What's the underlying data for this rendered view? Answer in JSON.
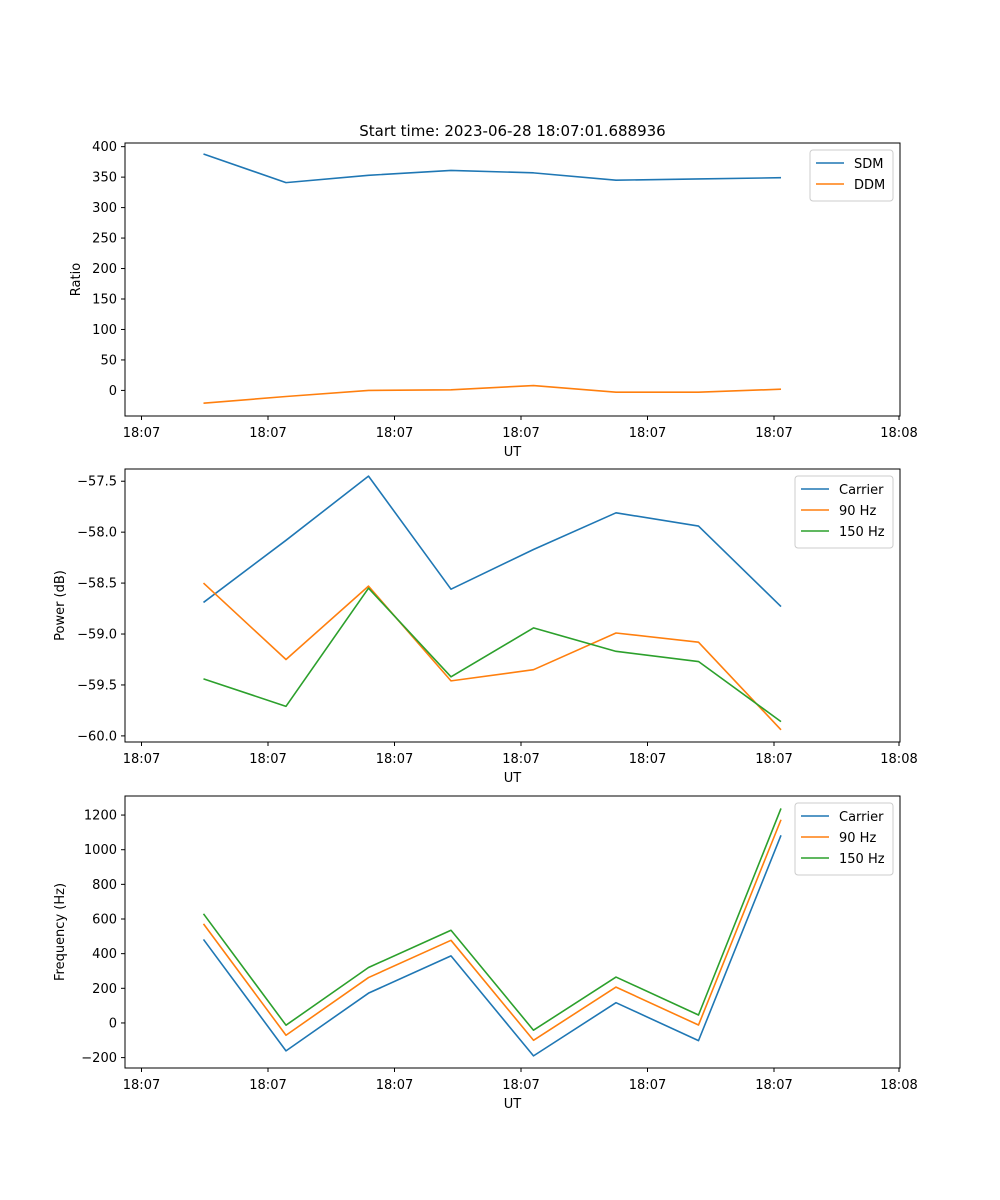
{
  "figure_title": "Start time: 2023-06-28 18:07:01.688936",
  "chart_data": [
    {
      "type": "line",
      "xlabel": "UT",
      "ylabel": "Ratio",
      "x_tick_labels": [
        "18:07",
        "18:07",
        "18:07",
        "18:07",
        "18:07",
        "18:07",
        "18:08"
      ],
      "yticks": [
        0,
        50,
        100,
        150,
        200,
        250,
        300,
        350,
        400
      ],
      "ylim": [
        -42,
        406
      ],
      "grid": false,
      "legend_position": "upper right",
      "series": [
        {
          "name": "SDM",
          "color": "#1f77b4",
          "values": [
            388,
            341,
            353,
            361,
            357,
            345,
            347,
            349
          ]
        },
        {
          "name": "DDM",
          "color": "#ff7f0e",
          "values": [
            -21,
            -10,
            0,
            1,
            8,
            -3,
            -3,
            2
          ]
        }
      ]
    },
    {
      "type": "line",
      "xlabel": "UT",
      "ylabel": "Power (dB)",
      "x_tick_labels": [
        "18:07",
        "18:07",
        "18:07",
        "18:07",
        "18:07",
        "18:07",
        "18:08"
      ],
      "yticks": [
        -60.0,
        -59.5,
        -59.0,
        -58.5,
        -58.0,
        -57.5
      ],
      "ytick_labels": [
        "−60.0",
        "−59.5",
        "−59.0",
        "−58.5",
        "−58.0",
        "−57.5"
      ],
      "ylim": [
        -60.06,
        -57.38
      ],
      "grid": false,
      "legend_position": "upper right",
      "series": [
        {
          "name": "Carrier",
          "color": "#1f77b4",
          "values": [
            -58.69,
            -58.08,
            -57.45,
            -58.56,
            -58.17,
            -57.81,
            -57.94,
            -58.73
          ]
        },
        {
          "name": "90 Hz",
          "color": "#ff7f0e",
          "values": [
            -58.5,
            -59.25,
            -58.53,
            -59.46,
            -59.35,
            -58.99,
            -59.08,
            -59.94
          ]
        },
        {
          "name": "150 Hz",
          "color": "#2ca02c",
          "values": [
            -59.44,
            -59.71,
            -58.55,
            -59.42,
            -58.94,
            -59.17,
            -59.27,
            -59.86
          ]
        }
      ]
    },
    {
      "type": "line",
      "xlabel": "UT",
      "ylabel": "Frequency (Hz)",
      "x_tick_labels": [
        "18:07",
        "18:07",
        "18:07",
        "18:07",
        "18:07",
        "18:07",
        "18:08"
      ],
      "yticks": [
        -200,
        0,
        200,
        400,
        600,
        800,
        1000,
        1200
      ],
      "ytick_labels": [
        "−200",
        "0",
        "200",
        "400",
        "600",
        "800",
        "1000",
        "1200"
      ],
      "ylim": [
        -260,
        1310
      ],
      "grid": false,
      "legend_position": "upper right",
      "series": [
        {
          "name": "Carrier",
          "color": "#1f77b4",
          "values": [
            482,
            -161,
            172,
            387,
            -190,
            117,
            -102,
            1083
          ]
        },
        {
          "name": "90 Hz",
          "color": "#ff7f0e",
          "values": [
            572,
            -71,
            262,
            477,
            -100,
            207,
            -12,
            1173
          ]
        },
        {
          "name": "150 Hz",
          "color": "#2ca02c",
          "values": [
            630,
            -13,
            320,
            535,
            -42,
            265,
            46,
            1238
          ]
        }
      ]
    }
  ]
}
